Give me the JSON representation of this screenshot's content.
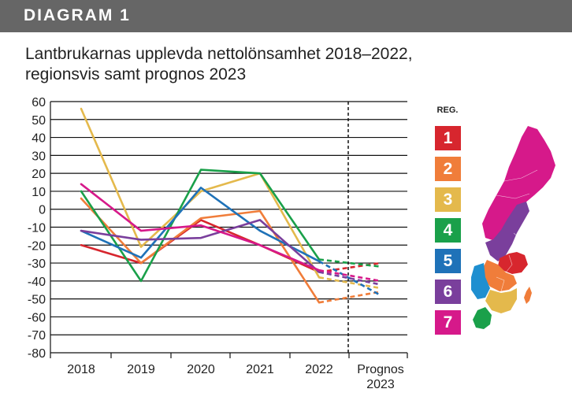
{
  "header": {
    "label": "DIAGRAM 1"
  },
  "title": {
    "line1": "Lantbrukarnas upplevda nettolönsamhet 2018–2022,",
    "line2": "regionsvis samt prognos 2023"
  },
  "legend": {
    "title": "REG."
  },
  "chart_data": {
    "type": "line",
    "title": "Lantbrukarnas upplevda nettolönsamhet 2018–2022, regionsvis samt prognos 2023",
    "categories": [
      "2018",
      "2019",
      "2020",
      "2021",
      "2022",
      "Prognos 2023"
    ],
    "ylim": [
      -80,
      60
    ],
    "yticks": [
      60,
      50,
      40,
      30,
      20,
      10,
      0,
      -10,
      -20,
      -30,
      -40,
      -50,
      -60,
      -70,
      -80
    ],
    "grid": true,
    "legend_position": "right",
    "prognosis_separator": "between 2022 and Prognos 2023",
    "series": [
      {
        "name": "1",
        "color": "#d7262e",
        "values": [
          -20,
          -30,
          -6,
          -20,
          -35,
          -30
        ]
      },
      {
        "name": "2",
        "color": "#f07d3a",
        "values": [
          6,
          -30,
          -5,
          -1,
          -52,
          -46
        ]
      },
      {
        "name": "3",
        "color": "#e4b94c",
        "values": [
          56,
          -21,
          10,
          20,
          -38,
          -44
        ]
      },
      {
        "name": "4",
        "color": "#1aa04a",
        "values": [
          10,
          -40,
          22,
          20,
          -28,
          -32
        ]
      },
      {
        "name": "5",
        "color": "#1f72b8",
        "values": [
          -12,
          -27,
          12,
          -12,
          -29,
          -48
        ]
      },
      {
        "name": "6",
        "color": "#7a3f9c",
        "values": [
          -12,
          -17,
          -16,
          -6,
          -35,
          -42
        ]
      },
      {
        "name": "7",
        "color": "#d6198a",
        "values": [
          14,
          -12,
          -9,
          -20,
          -34,
          -40
        ]
      }
    ]
  }
}
